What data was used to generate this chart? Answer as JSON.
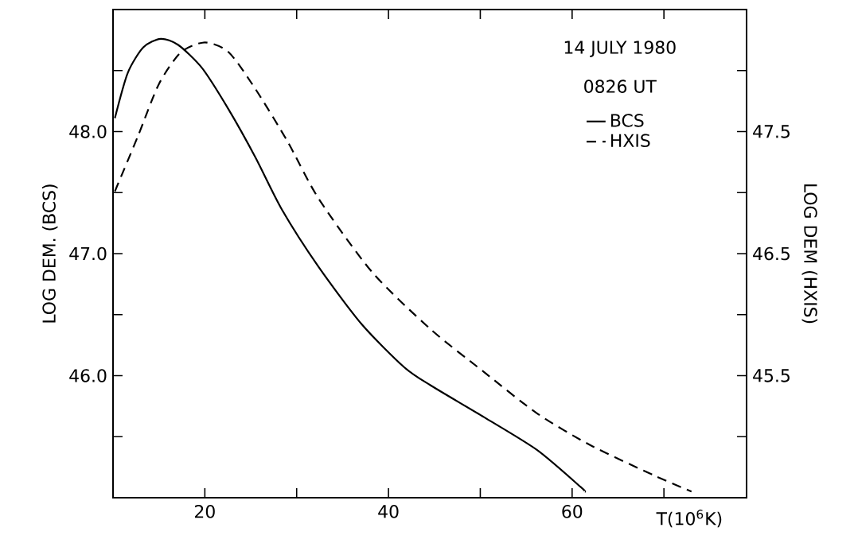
{
  "chart_data": {
    "type": "line",
    "xlabel": "T(10$^{6}$K)",
    "ylabel": "LOG DEM. (BCS)",
    "y2label": "LOG DEM (HXIS)",
    "annotations": [
      "14 JULY 1980",
      "0826 UT"
    ],
    "legend": "top right",
    "xlim": [
      10,
      79
    ],
    "ylim": [
      45,
      49
    ],
    "y2lim": [
      44.5,
      48.5
    ],
    "xticks": [
      20,
      40,
      60,
      {
        "value": 30,
        "label": null
      },
      {
        "value": 50,
        "label": null
      },
      {
        "value": 70,
        "label": null
      }
    ],
    "yticks": [
      {
        "value": 48,
        "label": "48.0"
      },
      {
        "value": 47,
        "label": "47.0"
      },
      {
        "value": 46,
        "label": "46.0"
      },
      {
        "value": 48.5,
        "label": null
      },
      {
        "value": 47.5,
        "label": null
      },
      {
        "value": 46.5,
        "label": null
      },
      {
        "value": 45.5,
        "label": null
      }
    ],
    "y2ticks": [
      {
        "value": 47.5,
        "label": "47.5"
      },
      {
        "value": 46.5,
        "label": "46.5"
      },
      {
        "value": 45.5,
        "label": "45.5"
      },
      {
        "value": 48,
        "label": null
      },
      {
        "value": 47,
        "label": null
      },
      {
        "value": 46,
        "label": null
      },
      {
        "value": 45,
        "label": null
      }
    ],
    "series": [
      {
        "name": "BCS",
        "color": "#000000",
        "line_style": "solid",
        "x": [
          10.2,
          11.6,
          13.3,
          15.2,
          17.1,
          19.7,
          22.6,
          25.5,
          28.4,
          32.4,
          37.1,
          41.7,
          44.6,
          50.4,
          56.2,
          60.9,
          61.4
        ],
        "values": [
          48.11,
          48.48,
          48.69,
          48.76,
          48.71,
          48.52,
          48.18,
          47.79,
          47.36,
          46.89,
          46.42,
          46.07,
          45.92,
          45.66,
          45.39,
          45.09,
          45.05
        ]
      },
      {
        "name": "HXIS",
        "color": "#000000",
        "line_style": "dashed",
        "axis": "y2",
        "x": [
          10.2,
          12.7,
          15.0,
          17.4,
          20.0,
          22.6,
          25.5,
          29.0,
          32.4,
          38.2,
          44.6,
          50.4,
          56.2,
          62.0,
          69.0,
          73.0
        ],
        "values": [
          47.01,
          47.46,
          47.89,
          48.15,
          48.23,
          48.15,
          47.85,
          47.42,
          46.95,
          46.35,
          45.88,
          45.53,
          45.19,
          44.93,
          44.68,
          44.55
        ]
      }
    ]
  }
}
